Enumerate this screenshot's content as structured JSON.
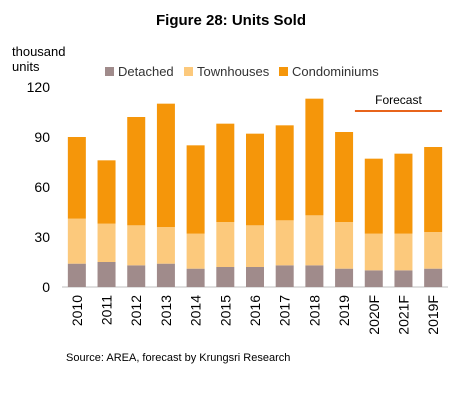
{
  "chart_data": {
    "type": "bar",
    "stacked": true,
    "title": "Figure 28: Units Sold",
    "ylabel": "thousand\nunits",
    "xlabel": "",
    "categories": [
      "2010",
      "2011",
      "2012",
      "2013",
      "2014",
      "2015",
      "2016",
      "2017",
      "2018",
      "2019",
      "2020F",
      "2021F",
      "2019F"
    ],
    "series": [
      {
        "name": "Detached",
        "color": "#A08B8B",
        "values": [
          14,
          15,
          13,
          14,
          11,
          12,
          12,
          13,
          13,
          11,
          10,
          10,
          11
        ]
      },
      {
        "name": "Townhouses",
        "color": "#FCC97C",
        "values": [
          27,
          23,
          24,
          22,
          21,
          27,
          25,
          27,
          30,
          28,
          22,
          22,
          22
        ]
      },
      {
        "name": "Condominiums",
        "color": "#F5960A",
        "values": [
          49,
          38,
          65,
          74,
          53,
          59,
          55,
          57,
          70,
          54,
          45,
          48,
          51
        ]
      }
    ],
    "ylim": [
      0,
      120
    ],
    "yticks": [
      0,
      30,
      60,
      90,
      120
    ],
    "grid": false,
    "legend_position": "top",
    "annotation": {
      "text": "Forecast",
      "color": "#E8641B"
    },
    "source": "Source: AREA, forecast by Krungsri Research"
  }
}
